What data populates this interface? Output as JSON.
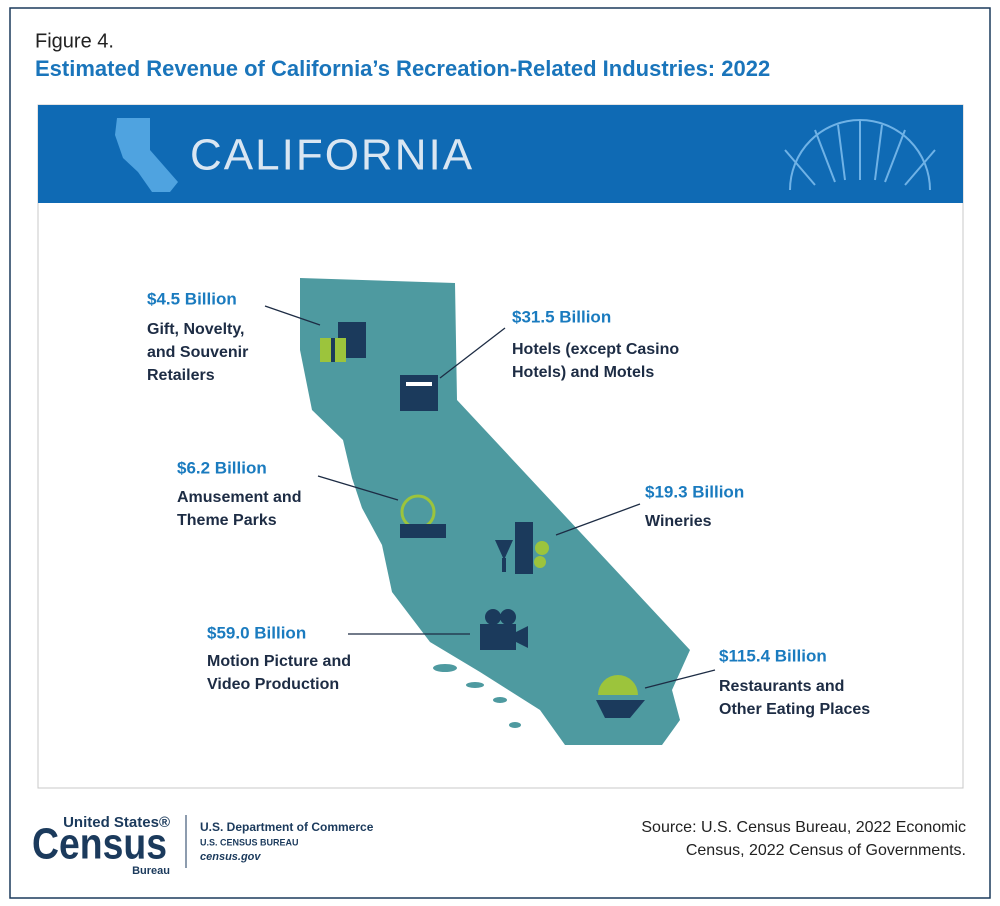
{
  "figure_label": "Figure 4.",
  "title": "Estimated Revenue of California’s Recreation-Related Industries: 2022",
  "banner": "CALIFORNIA",
  "items": [
    {
      "value": "$4.5 Billion",
      "lines": [
        "Gift, Novelty,",
        "and Souvenir",
        "Retailers"
      ]
    },
    {
      "value": "$31.5 Billion",
      "lines": [
        "Hotels (except Casino",
        "Hotels) and Motels"
      ]
    },
    {
      "value": "$6.2 Billion",
      "lines": [
        "Amusement and",
        "Theme Parks"
      ]
    },
    {
      "value": "$19.3 Billion",
      "lines": [
        "Wineries"
      ]
    },
    {
      "value": "$59.0 Billion",
      "lines": [
        "Motion Picture and",
        "Video Production"
      ]
    },
    {
      "value": "$115.4 Billion",
      "lines": [
        "Restaurants and",
        "Other Eating Places"
      ]
    }
  ],
  "footer": {
    "logo": [
      "United States®",
      "Census",
      "Bureau"
    ],
    "agency": [
      "U.S. Department of Commerce",
      "U.S. CENSUS BUREAU",
      "census.gov"
    ],
    "source": [
      "Source: U.S. Census Bureau, 2022 Economic",
      "Census, 2022 Census of Governments."
    ]
  }
}
